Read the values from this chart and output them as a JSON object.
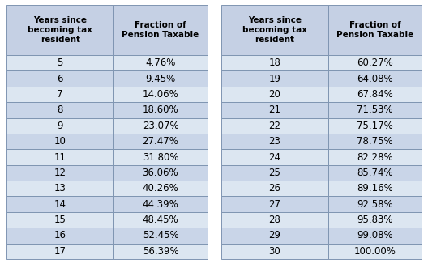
{
  "left_years": [
    "5",
    "6",
    "7",
    "8",
    "9",
    "10",
    "11",
    "12",
    "13",
    "14",
    "15",
    "16",
    "17"
  ],
  "left_fractions": [
    "4.76%",
    "9.45%",
    "14.06%",
    "18.60%",
    "23.07%",
    "27.47%",
    "31.80%",
    "36.06%",
    "40.26%",
    "44.39%",
    "48.45%",
    "52.45%",
    "56.39%"
  ],
  "right_years": [
    "18",
    "19",
    "20",
    "21",
    "22",
    "23",
    "24",
    "25",
    "26",
    "27",
    "28",
    "29",
    "30"
  ],
  "right_fractions": [
    "60.27%",
    "64.08%",
    "67.84%",
    "71.53%",
    "75.17%",
    "78.75%",
    "82.28%",
    "85.74%",
    "89.16%",
    "92.58%",
    "95.83%",
    "99.08%",
    "100.00%"
  ],
  "header_col1": "Years since\nbecoming tax\nresident",
  "header_col2": "Fraction of\nPension Taxable",
  "header_bg": "#c5d0e4",
  "row_bg_light": "#dce6f1",
  "row_bg_dark": "#c9d5e8",
  "border_color": "#7f95b2",
  "text_color": "#000000",
  "header_fontsize": 7.5,
  "cell_fontsize": 8.5,
  "fig_width": 5.28,
  "fig_height": 3.26,
  "dpi": 100
}
